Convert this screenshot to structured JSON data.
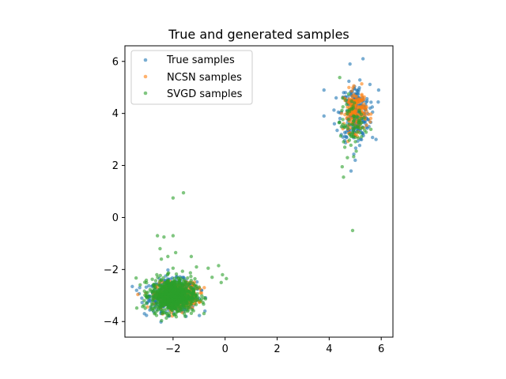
{
  "chart_data": {
    "type": "scatter",
    "title": "True and generated samples",
    "xlabel": "",
    "ylabel": "",
    "xlim": [
      -3.85,
      6.45
    ],
    "ylim": [
      -4.6,
      6.6
    ],
    "x_ticks": [
      -2,
      0,
      2,
      4,
      6
    ],
    "y_ticks": [
      -4,
      -2,
      0,
      2,
      4,
      6
    ],
    "x_tick_labels": [
      "−2",
      "0",
      "2",
      "4",
      "6"
    ],
    "y_tick_labels": [
      "−4",
      "−2",
      "0",
      "2",
      "4",
      "6"
    ],
    "grid": false,
    "legend_position": "upper-left",
    "series": [
      {
        "name": "True samples",
        "color": "#1f77b4",
        "clusters": [
          {
            "center": [
              -2.0,
              -3.0
            ],
            "spread": [
              0.45,
              0.3
            ],
            "count": 500
          },
          {
            "center": [
              5.0,
              4.0
            ],
            "spread": [
              0.28,
              0.55
            ],
            "count": 260
          }
        ],
        "points": [
          [
            -3.4,
            -2.8
          ],
          [
            -3.2,
            -3.1
          ],
          [
            -3.1,
            -3.7
          ],
          [
            -1.5,
            -3.8
          ],
          [
            -0.9,
            -2.8
          ],
          [
            3.8,
            4.9
          ],
          [
            3.8,
            3.9
          ],
          [
            5.9,
            4.9
          ],
          [
            5.3,
            6.1
          ],
          [
            4.8,
            5.9
          ],
          [
            5.8,
            3.0
          ],
          [
            5.0,
            2.2
          ],
          [
            4.2,
            3.6
          ]
        ]
      },
      {
        "name": "NCSN samples",
        "color": "#ff7f0e",
        "clusters": [
          {
            "center": [
              -1.85,
              -3.0
            ],
            "spread": [
              0.4,
              0.25
            ],
            "count": 320
          },
          {
            "center": [
              5.0,
              4.1
            ],
            "spread": [
              0.22,
              0.4
            ],
            "count": 170
          }
        ],
        "points": [
          [
            -1.0,
            -2.7
          ],
          [
            -1.2,
            -2.6
          ],
          [
            -1.4,
            -2.5
          ],
          [
            -0.95,
            -2.9
          ]
        ]
      },
      {
        "name": "SVGD samples",
        "color": "#2ca02c",
        "clusters": [
          {
            "center": [
              -2.0,
              -3.0
            ],
            "spread": [
              0.42,
              0.32
            ],
            "count": 850
          },
          {
            "center": [
              4.9,
              3.6
            ],
            "spread": [
              0.25,
              0.5
            ],
            "count": 80
          }
        ],
        "points": [
          [
            -2.0,
            0.75
          ],
          [
            -1.6,
            0.95
          ],
          [
            -2.6,
            -0.7
          ],
          [
            -2.35,
            -0.75
          ],
          [
            -2.0,
            -0.7
          ],
          [
            -2.5,
            -1.2
          ],
          [
            -2.45,
            -1.6
          ],
          [
            -2.2,
            -1.5
          ],
          [
            -1.9,
            -1.35
          ],
          [
            -2.0,
            -1.95
          ],
          [
            -1.3,
            -1.5
          ],
          [
            -0.65,
            -1.95
          ],
          [
            -0.25,
            -1.85
          ],
          [
            -0.1,
            -2.2
          ],
          [
            0.05,
            -2.35
          ],
          [
            -0.15,
            -2.5
          ],
          [
            -0.5,
            -2.3
          ],
          [
            -1.1,
            -1.9
          ],
          [
            4.9,
            -0.5
          ],
          [
            4.55,
            1.55
          ],
          [
            4.5,
            1.95
          ],
          [
            4.7,
            2.3
          ],
          [
            4.6,
            2.7
          ]
        ]
      }
    ]
  }
}
